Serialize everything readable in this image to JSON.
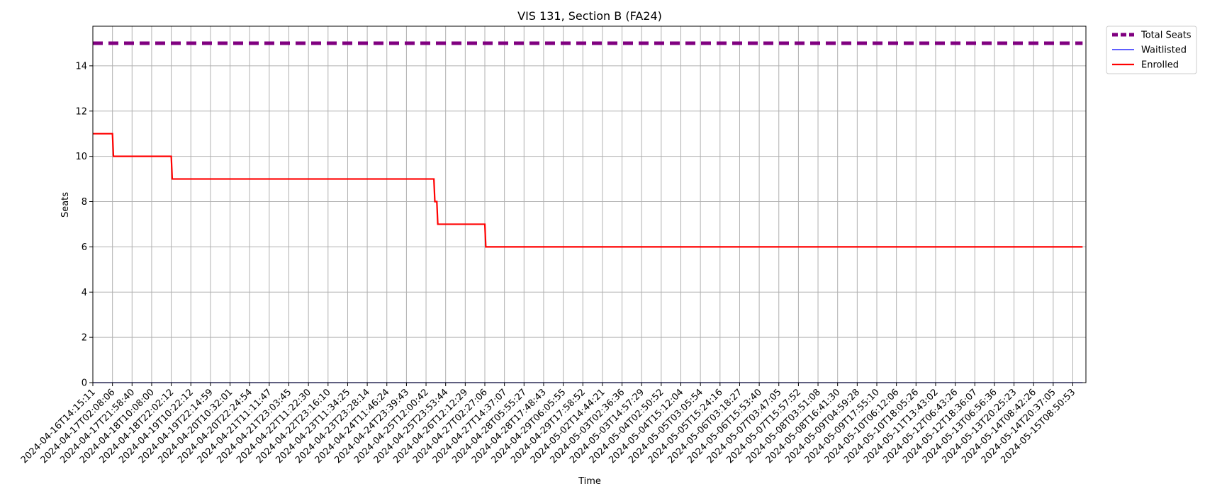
{
  "chart_data": {
    "type": "line",
    "title": "VIS 131, Section B (FA24)",
    "xlabel": "Time",
    "ylabel": "Seats",
    "ylim": [
      0,
      15.75
    ],
    "yticks": [
      0,
      2,
      4,
      6,
      8,
      10,
      12,
      14
    ],
    "grid": true,
    "legend_position": "outside-top-right",
    "x_ticks": [
      "2024-04-16T14:15:11",
      "2024-04-17T02:08:06",
      "2024-04-17T21:58:40",
      "2024-04-18T10:08:00",
      "2024-04-18T22:02:12",
      "2024-04-19T10:22:12",
      "2024-04-19T22:14:59",
      "2024-04-20T10:32:01",
      "2024-04-20T22:24:54",
      "2024-04-21T11:11:47",
      "2024-04-21T23:03:45",
      "2024-04-22T11:22:30",
      "2024-04-22T23:16:10",
      "2024-04-23T11:34:25",
      "2024-04-23T23:28:14",
      "2024-04-24T11:46:24",
      "2024-04-24T23:39:43",
      "2024-04-25T12:00:42",
      "2024-04-25T23:53:44",
      "2024-04-26T12:12:29",
      "2024-04-27T02:27:06",
      "2024-04-27T14:37:07",
      "2024-04-28T05:55:27",
      "2024-04-28T17:48:43",
      "2024-04-29T06:05:55",
      "2024-04-29T17:58:52",
      "2024-05-02T14:44:21",
      "2024-05-03T02:36:36",
      "2024-05-03T14:57:29",
      "2024-05-04T02:50:52",
      "2024-05-04T15:12:04",
      "2024-05-05T03:05:54",
      "2024-05-05T15:24:16",
      "2024-05-06T03:18:27",
      "2024-05-06T15:53:40",
      "2024-05-07T03:47:05",
      "2024-05-07T15:57:52",
      "2024-05-08T03:51:08",
      "2024-05-08T16:41:30",
      "2024-05-09T04:59:28",
      "2024-05-09T17:55:10",
      "2024-05-10T06:12:06",
      "2024-05-10T18:05:26",
      "2024-05-11T13:43:02",
      "2024-05-12T06:43:26",
      "2024-05-12T18:36:07",
      "2024-05-13T06:56:36",
      "2024-05-13T20:25:23",
      "2024-05-14T08:42:26",
      "2024-05-14T20:37:05",
      "2024-05-15T08:50:53"
    ],
    "series": [
      {
        "name": "Total Seats",
        "color": "#800080",
        "style": "dashed",
        "points": [
          [
            0,
            15
          ],
          [
            50.5,
            15
          ]
        ]
      },
      {
        "name": "Waitlisted",
        "color": "#0000ff",
        "style": "solid",
        "points": [
          [
            0,
            0
          ],
          [
            50.5,
            0
          ]
        ]
      },
      {
        "name": "Enrolled",
        "color": "#ff0000",
        "style": "solid",
        "points": [
          [
            0,
            11
          ],
          [
            1,
            11
          ],
          [
            1.05,
            10
          ],
          [
            4,
            10
          ],
          [
            4.05,
            9
          ],
          [
            17.4,
            9
          ],
          [
            17.45,
            8
          ],
          [
            17.55,
            8
          ],
          [
            17.6,
            7
          ],
          [
            20,
            7
          ],
          [
            20.05,
            6
          ],
          [
            50.5,
            6
          ]
        ]
      }
    ]
  }
}
